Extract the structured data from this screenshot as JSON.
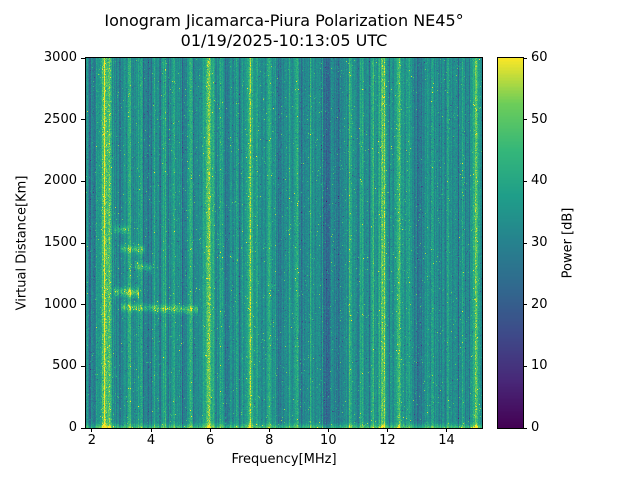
{
  "figure": {
    "background": "#ffffff",
    "axis_color": "#000000"
  },
  "chart_data": {
    "type": "heatmap",
    "title": "Ionogram Jicamarca-Piura Polarization NE45°",
    "subtitle": "01/19/2025-10:13:05 UTC",
    "xlabel": "Frequency[MHz]",
    "ylabel": "Virtual Distance[Km]",
    "colorbar_label": "Power [dB]",
    "x_range": [
      1.8,
      15.2
    ],
    "y_range": [
      0,
      3000
    ],
    "value_range": [
      0,
      60
    ],
    "x_ticks": [
      2,
      4,
      6,
      8,
      10,
      12,
      14
    ],
    "y_ticks": [
      0,
      500,
      1000,
      1500,
      2000,
      2500,
      3000
    ],
    "colorbar_ticks": [
      0,
      10,
      20,
      30,
      40,
      50,
      60
    ],
    "grid": false,
    "legend": "none",
    "colormap": "viridis",
    "viridis_stops": [
      [
        0.0,
        "#440154"
      ],
      [
        0.125,
        "#482878"
      ],
      [
        0.25,
        "#3e4a89"
      ],
      [
        0.375,
        "#31688e"
      ],
      [
        0.5,
        "#26828e"
      ],
      [
        0.625,
        "#1f9e89"
      ],
      [
        0.75,
        "#35b779"
      ],
      [
        0.875,
        "#6dcd59"
      ],
      [
        1.0,
        "#fde725"
      ]
    ],
    "noise": {
      "seed": 42,
      "base_db": 33,
      "column_jitter_db": 7,
      "pixel_jitter_db": 4.5
    },
    "rfi_bands": [
      {
        "freq": 2.45,
        "width": 0.15,
        "boost": 20
      },
      {
        "freq": 2.62,
        "width": 0.06,
        "boost": 12
      },
      {
        "freq": 3.25,
        "width": 0.05,
        "boost": 10
      },
      {
        "freq": 3.65,
        "width": 0.05,
        "boost": 9
      },
      {
        "freq": 4.12,
        "width": 0.04,
        "boost": 8
      },
      {
        "freq": 4.5,
        "width": 0.06,
        "boost": 10
      },
      {
        "freq": 4.78,
        "width": 0.04,
        "boost": 8
      },
      {
        "freq": 5.35,
        "width": 0.06,
        "boost": 11
      },
      {
        "freq": 5.95,
        "width": 0.12,
        "boost": 18
      },
      {
        "freq": 6.35,
        "width": 0.05,
        "boost": 10
      },
      {
        "freq": 6.9,
        "width": 0.04,
        "boost": 8
      },
      {
        "freq": 7.35,
        "width": 0.1,
        "boost": 16
      },
      {
        "freq": 7.62,
        "width": 0.05,
        "boost": 9
      },
      {
        "freq": 8.0,
        "width": 0.05,
        "boost": 9
      },
      {
        "freq": 8.95,
        "width": 0.07,
        "boost": 12
      },
      {
        "freq": 9.4,
        "width": 0.04,
        "boost": 8
      },
      {
        "freq": 10.1,
        "width": 0.03,
        "boost": 9
      },
      {
        "freq": 10.75,
        "width": 0.05,
        "boost": 8
      },
      {
        "freq": 11.15,
        "width": 0.04,
        "boost": 8
      },
      {
        "freq": 11.5,
        "width": 0.05,
        "boost": 10
      },
      {
        "freq": 11.85,
        "width": 0.12,
        "boost": 17
      },
      {
        "freq": 12.4,
        "width": 0.1,
        "boost": 16
      },
      {
        "freq": 12.75,
        "width": 0.04,
        "boost": 8
      },
      {
        "freq": 13.5,
        "width": 0.05,
        "boost": 9
      },
      {
        "freq": 14.05,
        "width": 0.05,
        "boost": 8
      },
      {
        "freq": 14.55,
        "width": 0.04,
        "boost": 7
      },
      {
        "freq": 15.0,
        "width": 0.1,
        "boost": 16
      }
    ],
    "dark_bands": [
      {
        "freq": 2.05,
        "width": 0.05,
        "boost": -8
      },
      {
        "freq": 2.95,
        "width": 0.05,
        "boost": -7
      },
      {
        "freq": 3.9,
        "width": 0.05,
        "boost": -8
      },
      {
        "freq": 5.1,
        "width": 0.04,
        "boost": -6
      },
      {
        "freq": 6.6,
        "width": 0.05,
        "boost": -6
      },
      {
        "freq": 8.35,
        "width": 0.12,
        "boost": -7
      },
      {
        "freq": 9.15,
        "width": 0.05,
        "boost": -6
      },
      {
        "freq": 9.95,
        "width": 0.2,
        "boost": -9
      },
      {
        "freq": 10.35,
        "width": 0.1,
        "boost": -8
      },
      {
        "freq": 11.0,
        "width": 0.04,
        "boost": -5
      },
      {
        "freq": 13.1,
        "width": 0.08,
        "boost": -7
      },
      {
        "freq": 13.8,
        "width": 0.05,
        "boost": -6
      },
      {
        "freq": 14.4,
        "width": 0.05,
        "boost": -6
      }
    ],
    "echo_traces": [
      {
        "f0": 3.0,
        "f1": 5.6,
        "alt_km": 980,
        "thickness_km": 30,
        "boost": 14,
        "slope_km_per_mhz": -8
      },
      {
        "f0": 2.75,
        "f1": 3.6,
        "alt_km": 1105,
        "thickness_km": 35,
        "boost": 16,
        "slope_km_per_mhz": -10
      },
      {
        "f0": 3.45,
        "f1": 4.05,
        "alt_km": 1310,
        "thickness_km": 30,
        "boost": 12,
        "slope_km_per_mhz": -15
      },
      {
        "f0": 2.95,
        "f1": 3.8,
        "alt_km": 1455,
        "thickness_km": 30,
        "boost": 12,
        "slope_km_per_mhz": -12
      },
      {
        "f0": 2.75,
        "f1": 3.25,
        "alt_km": 1610,
        "thickness_km": 30,
        "boost": 11,
        "slope_km_per_mhz": -15
      }
    ],
    "ground_echo": {
      "alt_km": 0,
      "width_km": 30,
      "boost": 13
    }
  }
}
